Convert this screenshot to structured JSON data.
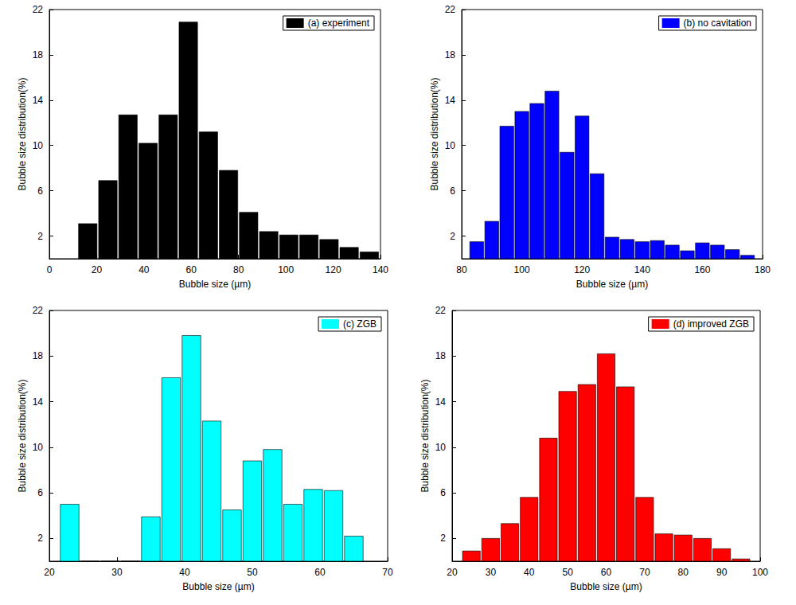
{
  "chart_data": [
    {
      "type": "histogram",
      "xlabel": "Bubble size (µm)",
      "ylabel": "Bubble size distribution(%)",
      "bins": [
        12,
        20.5,
        29,
        37.5,
        46,
        54.5,
        63,
        71.5,
        80,
        88.5,
        97,
        105.5,
        114,
        122.5,
        131,
        139.5
      ],
      "series": [
        {
          "name": "(a) experiment",
          "color": "#000000",
          "values": [
            3.1,
            6.9,
            12.7,
            10.2,
            12.7,
            20.9,
            11.2,
            7.8,
            4.1,
            2.4,
            2.1,
            2.1,
            1.7,
            1.0,
            0.6
          ]
        }
      ],
      "xlim": [
        0,
        140
      ],
      "xticks": [
        0,
        20,
        40,
        60,
        80,
        100,
        120,
        140
      ],
      "ylim": [
        0,
        22
      ],
      "yticks": [
        2,
        6,
        10,
        14,
        18,
        22
      ],
      "legend": "upper right",
      "grid": false
    },
    {
      "type": "histogram",
      "xlabel": "Bubble size (µm)",
      "ylabel": "Bubble size distribution(%)",
      "bins": [
        82.5,
        87.5,
        92.5,
        97.5,
        102.5,
        107.5,
        112.5,
        117.5,
        122.5,
        127.5,
        132.5,
        137.5,
        142.5,
        147.5,
        152.5,
        157.5,
        162.5,
        167.5,
        172.5,
        177.5
      ],
      "series": [
        {
          "name": "(b) no cavitation",
          "color": "#0000ff",
          "values": [
            1.5,
            3.3,
            11.7,
            13.0,
            13.7,
            14.8,
            9.4,
            12.6,
            7.5,
            1.9,
            1.7,
            1.5,
            1.6,
            1.2,
            0.7,
            1.4,
            1.2,
            0.8,
            0.3
          ]
        }
      ],
      "xlim": [
        80,
        180
      ],
      "xticks": [
        80,
        100,
        120,
        140,
        160,
        180
      ],
      "ylim": [
        0,
        22
      ],
      "yticks": [
        2,
        6,
        10,
        14,
        18,
        22
      ],
      "legend": "upper right",
      "grid": false
    },
    {
      "type": "histogram",
      "xlabel": "Bubble size (µm)",
      "ylabel": "Bubble size distribution(%)",
      "bins": [
        21.5,
        24.5,
        27.5,
        30.5,
        33.5,
        36.5,
        39.5,
        42.5,
        45.5,
        48.5,
        51.5,
        54.5,
        57.5,
        60.5,
        63.5,
        66.5
      ],
      "series": [
        {
          "name": "(c) ZGB",
          "color": "#00ffff",
          "values": [
            5.0,
            0,
            0,
            0,
            3.9,
            16.1,
            19.8,
            12.3,
            4.5,
            8.8,
            9.8,
            5.0,
            6.3,
            6.2,
            2.2
          ]
        }
      ],
      "xlim": [
        20,
        70
      ],
      "xticks": [
        20,
        30,
        40,
        50,
        60,
        70
      ],
      "ylim": [
        0,
        22
      ],
      "yticks": [
        2,
        6,
        10,
        14,
        18,
        22
      ],
      "legend": "upper right",
      "grid": false
    },
    {
      "type": "histogram",
      "xlabel": "Bubble size (µm)",
      "ylabel": "Bubble size distribution(%)",
      "bins": [
        22.5,
        27.5,
        32.5,
        37.5,
        42.5,
        47.5,
        52.5,
        57.5,
        62.5,
        67.5,
        72.5,
        77.5,
        82.5,
        87.5,
        92.5,
        97.5
      ],
      "series": [
        {
          "name": "(d) improved ZGB",
          "color": "#ff0000",
          "values": [
            0.9,
            2.0,
            3.3,
            5.6,
            10.8,
            14.9,
            15.5,
            18.2,
            15.3,
            5.6,
            2.4,
            2.3,
            2.0,
            1.1,
            0.2
          ]
        }
      ],
      "xlim": [
        20,
        100
      ],
      "xticks": [
        20,
        30,
        40,
        50,
        60,
        70,
        80,
        90,
        100
      ],
      "ylim": [
        0,
        22
      ],
      "yticks": [
        2,
        6,
        10,
        14,
        18,
        22
      ],
      "legend": "upper right",
      "grid": false
    }
  ]
}
